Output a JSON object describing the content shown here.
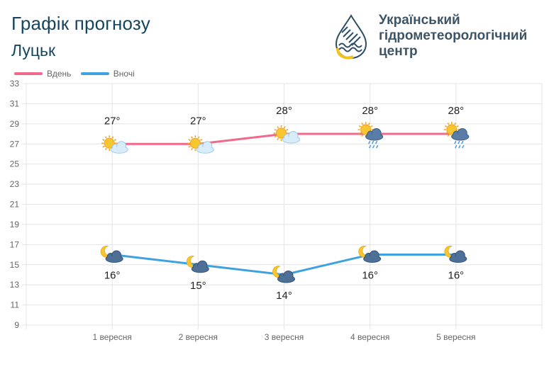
{
  "header": {
    "title": "Графік прогнозу",
    "city": "Луцьк",
    "org_lines": [
      "Український",
      "гідрометеорологічний",
      "центр"
    ]
  },
  "colors": {
    "day": "#f0698b",
    "night": "#3fa1e0",
    "title": "#16465f",
    "grid": "#e4e4e4"
  },
  "chart_data": {
    "type": "line",
    "categories": [
      "1 вересня",
      "2 вересня",
      "3 вересня",
      "4 вересня",
      "5 вересня"
    ],
    "series": [
      {
        "name": "Вдень",
        "values": [
          27,
          27,
          28,
          28,
          28
        ],
        "labels": [
          "27°",
          "27°",
          "28°",
          "28°",
          "28°"
        ],
        "icons": [
          "sun-cloud-icon",
          "sun-cloud-icon",
          "sun-cloud-icon",
          "sun-rain-icon",
          "sun-rain-icon"
        ]
      },
      {
        "name": "Вночі",
        "values": [
          16,
          15,
          14,
          16,
          16
        ],
        "labels": [
          "16°",
          "15°",
          "14°",
          "16°",
          "16°"
        ],
        "icons": [
          "moon-cloud-icon",
          "moon-cloud-icon",
          "moon-cloud-icon",
          "moon-cloud-icon",
          "moon-cloud-icon"
        ]
      }
    ],
    "ylim": [
      9,
      33
    ],
    "yticks": [
      9,
      11,
      13,
      15,
      17,
      19,
      21,
      23,
      25,
      27,
      29,
      31,
      33
    ],
    "grid": true,
    "legend": "top-left"
  }
}
